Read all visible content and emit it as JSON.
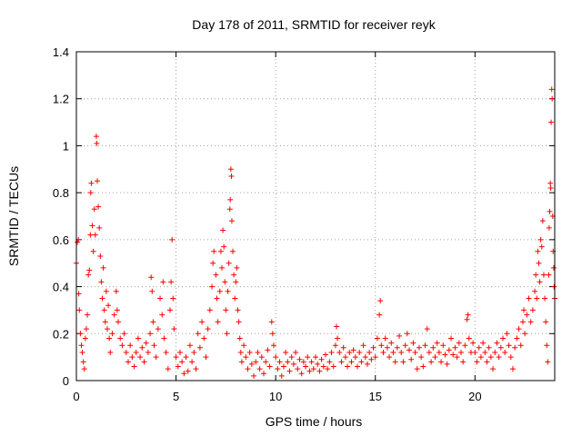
{
  "chart_data": {
    "type": "scatter",
    "title": "Day 178 of 2011, SRMTID for receiver reyk",
    "xlabel": "GPS time / hours",
    "ylabel": "SRMTID / TECUs",
    "xlim": [
      0,
      24
    ],
    "ylim": [
      0,
      1.4
    ],
    "xticks": [
      "0",
      "5",
      "10",
      "15",
      "20"
    ],
    "xtick_values": [
      0,
      5,
      10,
      15,
      20
    ],
    "yticks": [
      "0",
      "0.2",
      "0.4",
      "0.6",
      "0.8",
      "1",
      "1.2",
      "1.4"
    ],
    "ytick_values": [
      0,
      0.2,
      0.4,
      0.6,
      0.8,
      1.0,
      1.2,
      1.4
    ],
    "grid": true,
    "marker": "plus",
    "color": "#ff0000",
    "series": [
      {
        "name": "",
        "points": [
          [
            0.0,
            0.5
          ],
          [
            0.05,
            0.59
          ],
          [
            0.1,
            0.6
          ],
          [
            0.12,
            0.37
          ],
          [
            0.15,
            0.3
          ],
          [
            0.2,
            0.2
          ],
          [
            0.25,
            0.15
          ],
          [
            0.3,
            0.12
          ],
          [
            0.35,
            0.08
          ],
          [
            0.4,
            0.05
          ],
          [
            0.45,
            0.18
          ],
          [
            0.5,
            0.22
          ],
          [
            0.55,
            0.28
          ],
          [
            0.6,
            0.45
          ],
          [
            0.65,
            0.47
          ],
          [
            0.7,
            0.62
          ],
          [
            0.72,
            0.8
          ],
          [
            0.75,
            0.84
          ],
          [
            0.8,
            0.66
          ],
          [
            0.85,
            0.55
          ],
          [
            0.9,
            0.73
          ],
          [
            0.95,
            0.62
          ],
          [
            1.0,
            1.04
          ],
          [
            1.02,
            1.01
          ],
          [
            1.05,
            0.85
          ],
          [
            1.1,
            0.74
          ],
          [
            1.15,
            0.65
          ],
          [
            1.2,
            0.53
          ],
          [
            1.25,
            0.42
          ],
          [
            1.3,
            0.35
          ],
          [
            1.35,
            0.48
          ],
          [
            1.4,
            0.3
          ],
          [
            1.45,
            0.25
          ],
          [
            1.5,
            0.38
          ],
          [
            1.55,
            0.22
          ],
          [
            1.6,
            0.32
          ],
          [
            1.65,
            0.18
          ],
          [
            1.7,
            0.12
          ],
          [
            1.8,
            0.2
          ],
          [
            1.9,
            0.28
          ],
          [
            2.0,
            0.38
          ],
          [
            2.05,
            0.3
          ],
          [
            2.1,
            0.25
          ],
          [
            2.2,
            0.18
          ],
          [
            2.3,
            0.15
          ],
          [
            2.4,
            0.2
          ],
          [
            2.5,
            0.12
          ],
          [
            2.6,
            0.08
          ],
          [
            2.7,
            0.15
          ],
          [
            2.8,
            0.1
          ],
          [
            2.9,
            0.06
          ],
          [
            3.0,
            0.12
          ],
          [
            3.1,
            0.18
          ],
          [
            3.2,
            0.1
          ],
          [
            3.3,
            0.14
          ],
          [
            3.4,
            0.08
          ],
          [
            3.5,
            0.16
          ],
          [
            3.6,
            0.12
          ],
          [
            3.7,
            0.2
          ],
          [
            3.75,
            0.44
          ],
          [
            3.8,
            0.38
          ],
          [
            3.85,
            0.25
          ],
          [
            3.9,
            0.15
          ],
          [
            4.0,
            0.1
          ],
          [
            4.1,
            0.22
          ],
          [
            4.2,
            0.35
          ],
          [
            4.3,
            0.28
          ],
          [
            4.35,
            0.42
          ],
          [
            4.4,
            0.18
          ],
          [
            4.5,
            0.12
          ],
          [
            4.6,
            0.05
          ],
          [
            4.7,
            0.3
          ],
          [
            4.75,
            0.42
          ],
          [
            4.8,
            0.6
          ],
          [
            4.85,
            0.35
          ],
          [
            4.9,
            0.22
          ],
          [
            5.0,
            0.1
          ],
          [
            5.1,
            0.06
          ],
          [
            5.2,
            0.12
          ],
          [
            5.3,
            0.08
          ],
          [
            5.4,
            0.03
          ],
          [
            5.5,
            0.1
          ],
          [
            5.6,
            0.04
          ],
          [
            5.7,
            0.15
          ],
          [
            5.8,
            0.08
          ],
          [
            5.9,
            0.12
          ],
          [
            6.0,
            0.05
          ],
          [
            6.1,
            0.2
          ],
          [
            6.2,
            0.14
          ],
          [
            6.3,
            0.25
          ],
          [
            6.4,
            0.18
          ],
          [
            6.5,
            0.1
          ],
          [
            6.6,
            0.22
          ],
          [
            6.7,
            0.3
          ],
          [
            6.8,
            0.4
          ],
          [
            6.85,
            0.5
          ],
          [
            6.9,
            0.55
          ],
          [
            7.0,
            0.45
          ],
          [
            7.05,
            0.35
          ],
          [
            7.1,
            0.25
          ],
          [
            7.2,
            0.38
          ],
          [
            7.25,
            0.55
          ],
          [
            7.3,
            0.48
          ],
          [
            7.35,
            0.64
          ],
          [
            7.4,
            0.57
          ],
          [
            7.45,
            0.42
          ],
          [
            7.5,
            0.3
          ],
          [
            7.55,
            0.2
          ],
          [
            7.6,
            0.38
          ],
          [
            7.65,
            0.5
          ],
          [
            7.7,
            0.73
          ],
          [
            7.72,
            0.77
          ],
          [
            7.75,
            0.9
          ],
          [
            7.78,
            0.87
          ],
          [
            7.8,
            0.68
          ],
          [
            7.85,
            0.55
          ],
          [
            7.9,
            0.45
          ],
          [
            7.95,
            0.35
          ],
          [
            8.0,
            0.42
          ],
          [
            8.05,
            0.48
          ],
          [
            8.1,
            0.3
          ],
          [
            8.15,
            0.25
          ],
          [
            8.2,
            0.18
          ],
          [
            8.25,
            0.12
          ],
          [
            8.3,
            0.08
          ],
          [
            8.4,
            0.15
          ],
          [
            8.5,
            0.1
          ],
          [
            8.6,
            0.05
          ],
          [
            8.7,
            0.12
          ],
          [
            8.8,
            0.07
          ],
          [
            8.9,
            0.02
          ],
          [
            9.0,
            0.08
          ],
          [
            9.1,
            0.12
          ],
          [
            9.2,
            0.05
          ],
          [
            9.3,
            0.1
          ],
          [
            9.4,
            0.03
          ],
          [
            9.5,
            0.08
          ],
          [
            9.6,
            0.13
          ],
          [
            9.7,
            0.06
          ],
          [
            9.8,
            0.25
          ],
          [
            9.85,
            0.2
          ],
          [
            9.9,
            0.15
          ],
          [
            10.0,
            0.1
          ],
          [
            10.1,
            0.05
          ],
          [
            10.2,
            0.08
          ],
          [
            10.3,
            0.02
          ],
          [
            10.4,
            0.06
          ],
          [
            10.5,
            0.12
          ],
          [
            10.6,
            0.08
          ],
          [
            10.7,
            0.04
          ],
          [
            10.8,
            0.1
          ],
          [
            10.9,
            0.07
          ],
          [
            11.0,
            0.12
          ],
          [
            11.1,
            0.05
          ],
          [
            11.2,
            0.09
          ],
          [
            11.3,
            0.03
          ],
          [
            11.4,
            0.08
          ],
          [
            11.5,
            0.06
          ],
          [
            11.6,
            0.1
          ],
          [
            11.7,
            0.04
          ],
          [
            11.8,
            0.08
          ],
          [
            11.9,
            0.05
          ],
          [
            12.0,
            0.1
          ],
          [
            12.1,
            0.07
          ],
          [
            12.2,
            0.04
          ],
          [
            12.3,
            0.09
          ],
          [
            12.4,
            0.06
          ],
          [
            12.5,
            0.11
          ],
          [
            12.6,
            0.05
          ],
          [
            12.7,
            0.08
          ],
          [
            12.8,
            0.12
          ],
          [
            12.9,
            0.06
          ],
          [
            13.0,
            0.15
          ],
          [
            13.05,
            0.23
          ],
          [
            13.1,
            0.18
          ],
          [
            13.2,
            0.12
          ],
          [
            13.3,
            0.08
          ],
          [
            13.4,
            0.14
          ],
          [
            13.5,
            0.1
          ],
          [
            13.6,
            0.06
          ],
          [
            13.7,
            0.12
          ],
          [
            13.8,
            0.08
          ],
          [
            13.9,
            0.13
          ],
          [
            14.0,
            0.1
          ],
          [
            14.1,
            0.06
          ],
          [
            14.2,
            0.12
          ],
          [
            14.3,
            0.08
          ],
          [
            14.4,
            0.15
          ],
          [
            14.5,
            0.1
          ],
          [
            14.6,
            0.07
          ],
          [
            14.7,
            0.12
          ],
          [
            14.8,
            0.09
          ],
          [
            14.9,
            0.14
          ],
          [
            15.0,
            0.1
          ],
          [
            15.1,
            0.18
          ],
          [
            15.2,
            0.28
          ],
          [
            15.25,
            0.34
          ],
          [
            15.3,
            0.15
          ],
          [
            15.4,
            0.12
          ],
          [
            15.5,
            0.18
          ],
          [
            15.6,
            0.14
          ],
          [
            15.7,
            0.1
          ],
          [
            15.8,
            0.16
          ],
          [
            15.9,
            0.12
          ],
          [
            16.0,
            0.08
          ],
          [
            16.1,
            0.14
          ],
          [
            16.2,
            0.19
          ],
          [
            16.3,
            0.12
          ],
          [
            16.4,
            0.08
          ],
          [
            16.5,
            0.15
          ],
          [
            16.6,
            0.2
          ],
          [
            16.7,
            0.13
          ],
          [
            16.8,
            0.09
          ],
          [
            16.9,
            0.16
          ],
          [
            17.0,
            0.12
          ],
          [
            17.1,
            0.05
          ],
          [
            17.2,
            0.14
          ],
          [
            17.3,
            0.1
          ],
          [
            17.4,
            0.06
          ],
          [
            17.5,
            0.15
          ],
          [
            17.6,
            0.22
          ],
          [
            17.7,
            0.12
          ],
          [
            17.8,
            0.08
          ],
          [
            17.9,
            0.14
          ],
          [
            18.0,
            0.1
          ],
          [
            18.1,
            0.16
          ],
          [
            18.2,
            0.12
          ],
          [
            18.3,
            0.08
          ],
          [
            18.4,
            0.15
          ],
          [
            18.5,
            0.11
          ],
          [
            18.6,
            0.07
          ],
          [
            18.7,
            0.13
          ],
          [
            18.8,
            0.18
          ],
          [
            18.9,
            0.11
          ],
          [
            19.0,
            0.14
          ],
          [
            19.1,
            0.1
          ],
          [
            19.2,
            0.16
          ],
          [
            19.3,
            0.12
          ],
          [
            19.4,
            0.08
          ],
          [
            19.5,
            0.15
          ],
          [
            19.6,
            0.26
          ],
          [
            19.65,
            0.28
          ],
          [
            19.7,
            0.18
          ],
          [
            19.8,
            0.12
          ],
          [
            19.9,
            0.16
          ],
          [
            20.0,
            0.12
          ],
          [
            20.1,
            0.08
          ],
          [
            20.2,
            0.14
          ],
          [
            20.3,
            0.1
          ],
          [
            20.4,
            0.16
          ],
          [
            20.5,
            0.12
          ],
          [
            20.6,
            0.08
          ],
          [
            20.7,
            0.14
          ],
          [
            20.8,
            0.1
          ],
          [
            20.9,
            0.05
          ],
          [
            21.0,
            0.12
          ],
          [
            21.1,
            0.16
          ],
          [
            21.2,
            0.1
          ],
          [
            21.3,
            0.14
          ],
          [
            21.4,
            0.18
          ],
          [
            21.5,
            0.12
          ],
          [
            21.6,
            0.2
          ],
          [
            21.7,
            0.15
          ],
          [
            21.8,
            0.1
          ],
          [
            21.9,
            0.05
          ],
          [
            22.0,
            0.14
          ],
          [
            22.1,
            0.18
          ],
          [
            22.2,
            0.22
          ],
          [
            22.3,
            0.15
          ],
          [
            22.4,
            0.25
          ],
          [
            22.45,
            0.3
          ],
          [
            22.5,
            0.2
          ],
          [
            22.6,
            0.28
          ],
          [
            22.7,
            0.35
          ],
          [
            22.8,
            0.25
          ],
          [
            22.9,
            0.3
          ],
          [
            23.0,
            0.38
          ],
          [
            23.05,
            0.45
          ],
          [
            23.1,
            0.35
          ],
          [
            23.15,
            0.55
          ],
          [
            23.2,
            0.5
          ],
          [
            23.25,
            0.42
          ],
          [
            23.3,
            0.6
          ],
          [
            23.35,
            0.57
          ],
          [
            23.4,
            0.68
          ],
          [
            23.45,
            0.45
          ],
          [
            23.5,
            0.35
          ],
          [
            23.55,
            0.25
          ],
          [
            23.6,
            0.15
          ],
          [
            23.65,
            0.08
          ],
          [
            23.7,
            0.45
          ],
          [
            23.72,
            0.65
          ],
          [
            23.75,
            0.72
          ],
          [
            23.78,
            0.84
          ],
          [
            23.8,
            0.82
          ],
          [
            23.82,
            1.1
          ],
          [
            23.85,
            1.24
          ],
          [
            23.87,
            1.2
          ],
          [
            23.9,
            0.7
          ],
          [
            23.92,
            0.55
          ],
          [
            23.95,
            0.48
          ],
          [
            23.97,
            0.4
          ],
          [
            24.0,
            0.35
          ]
        ]
      }
    ]
  }
}
